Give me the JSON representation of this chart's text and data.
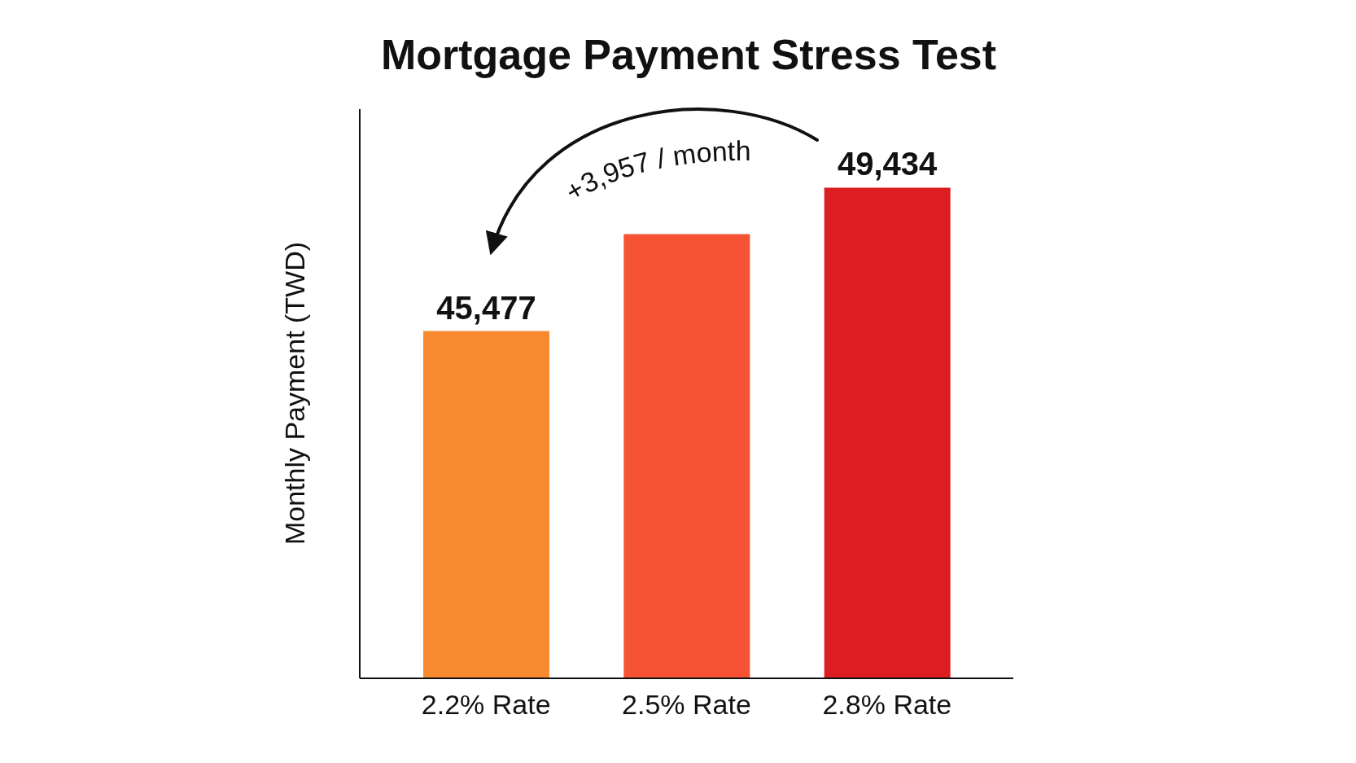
{
  "chart_data": {
    "type": "bar",
    "title": "Mortgage Payment Stress Test",
    "ylabel": "Monthly Payment (TWD)",
    "categories": [
      "2.2% Rate",
      "2.5% Rate",
      "2.8% Rate"
    ],
    "values": [
      45477,
      48150,
      49434
    ],
    "colors": [
      "#f88b30",
      "#f65334",
      "#dc1d22"
    ],
    "value_labels": [
      "45,477",
      null,
      "49,434"
    ],
    "ylim": [
      35900,
      51600
    ],
    "tick_labels": "x",
    "annotations": [
      "+3,957 / month"
    ]
  }
}
